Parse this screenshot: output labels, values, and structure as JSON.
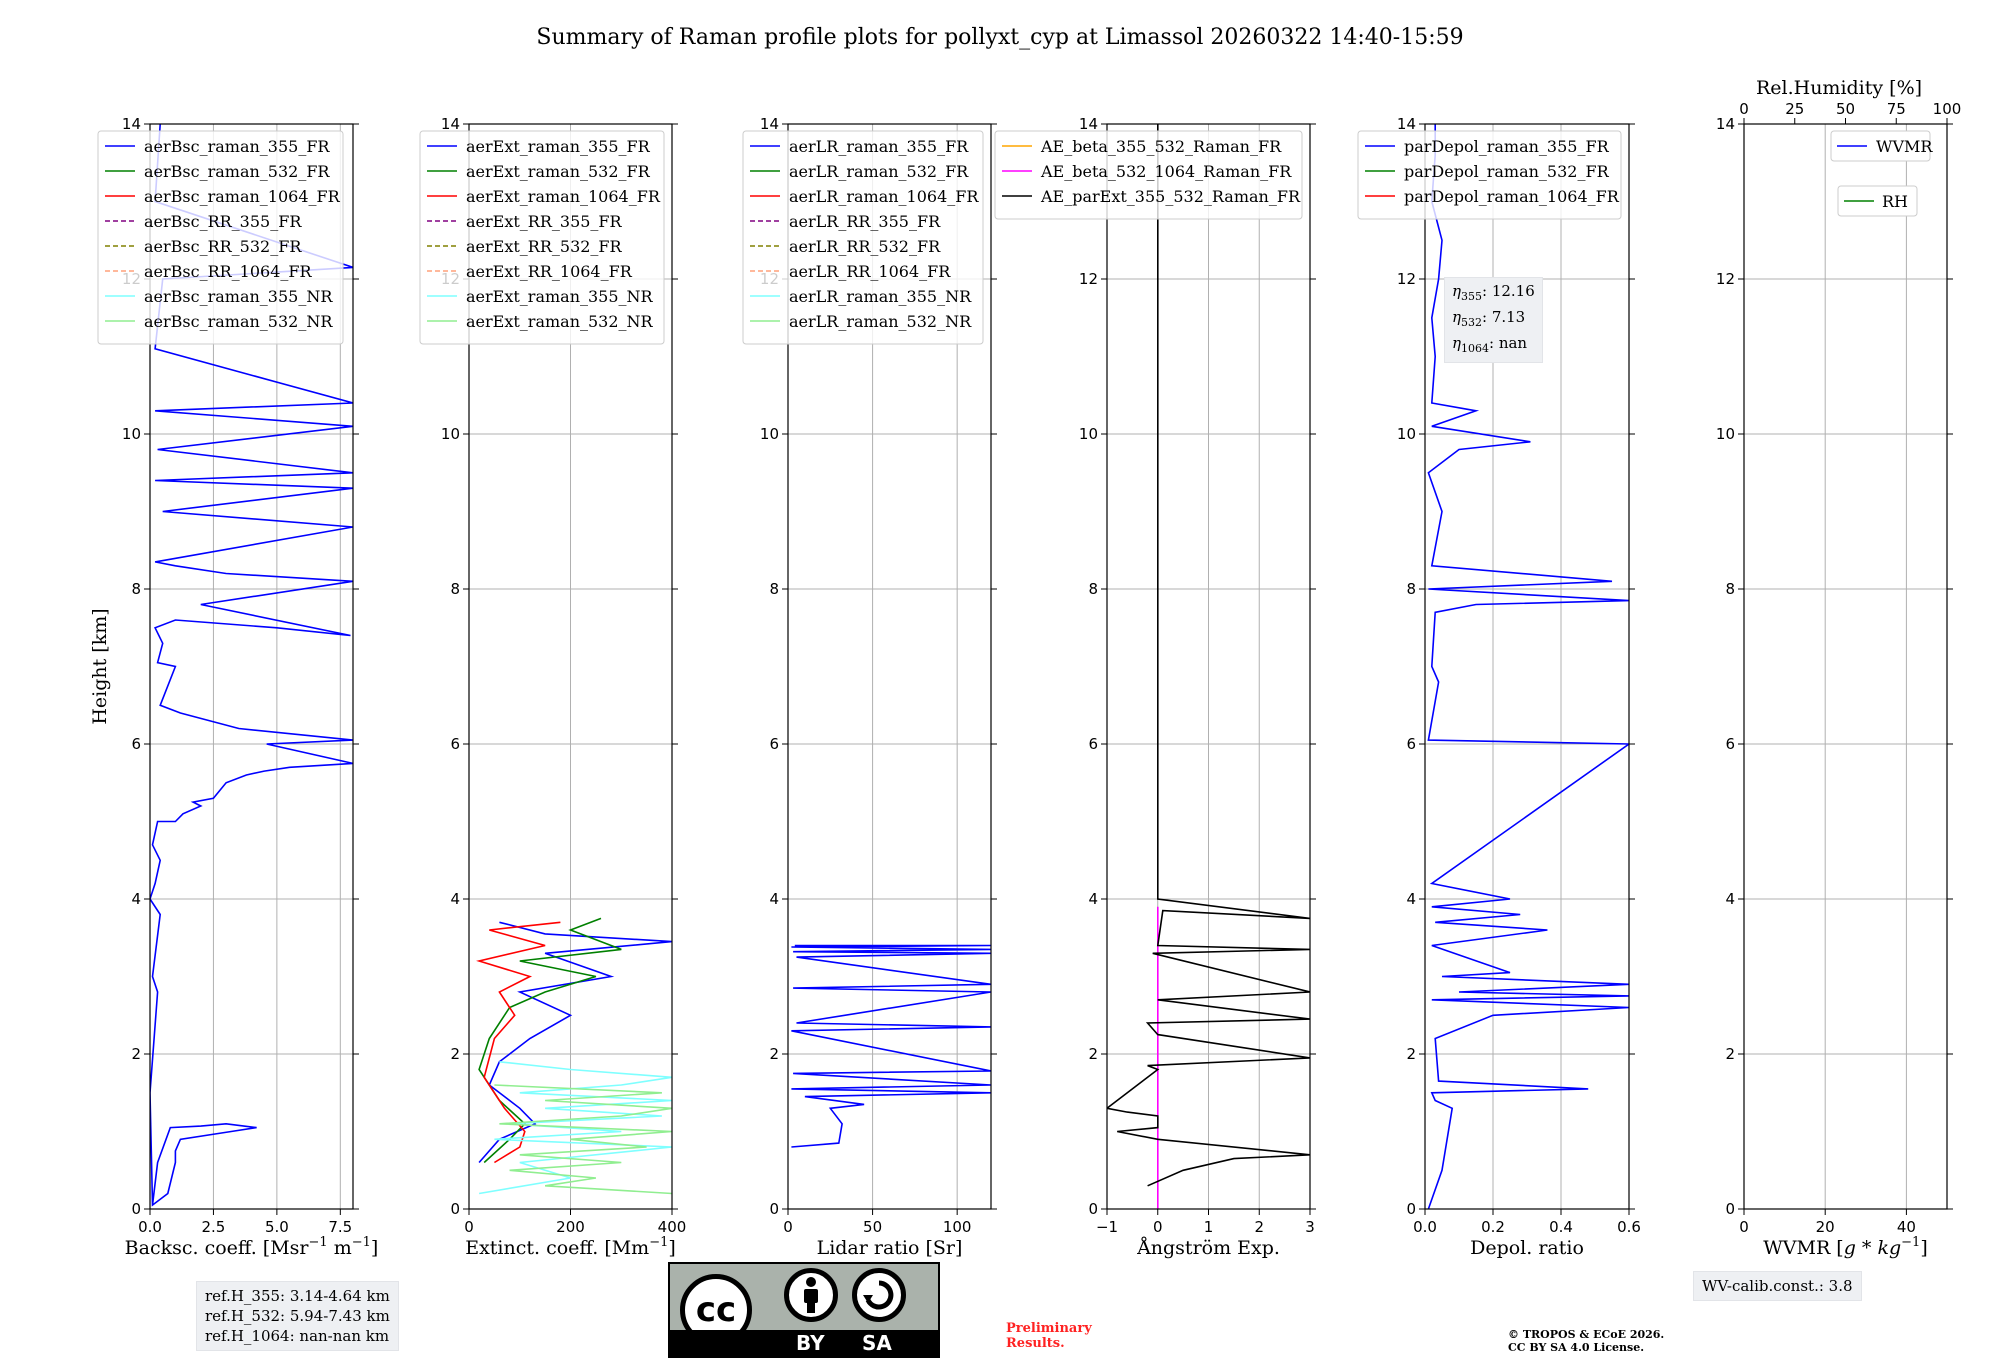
{
  "figure_title": "Summary of Raman profile plots for pollyxt_cyp at Limassol 20260322 14:40-15:59",
  "colors": {
    "blue": "#0000ff",
    "green": "#008000",
    "red": "#ff0000",
    "purple": "#800080",
    "olive": "#808000",
    "salmon": "#ffa07a",
    "cyan": "#7fffff",
    "lightgreen": "#90ee90",
    "orange": "#ffa500",
    "magenta": "#ff00ff",
    "black": "#000000",
    "grid": "#b0b0b0"
  },
  "chart_data": [
    {
      "type": "line",
      "name": "backscatter",
      "xlabel": "Backsc. coeff. [Msr$^{-1}$ m$^{-1}$]",
      "xlabel_main": "Backsc. coeff. [Msr",
      "xlabel_sup1": "−1",
      "xlabel_mid": " m",
      "xlabel_sup2": "−1",
      "xlabel_end": "]",
      "ylabel": "Height [km]",
      "xlim": [
        0,
        8
      ],
      "ylim": [
        0,
        14
      ],
      "xticks": [
        0,
        2.5,
        5,
        7.5
      ],
      "xtick_labels": [
        "0.0",
        "2.5",
        "5.0",
        "7.5"
      ],
      "yticks": [
        0,
        2,
        4,
        6,
        8,
        10,
        12,
        14
      ],
      "ytick_labels": [
        "0",
        "2",
        "4",
        "6",
        "8",
        "10",
        "12",
        "14"
      ],
      "legend": [
        "aerBsc_raman_355_FR",
        "aerBsc_raman_532_FR",
        "aerBsc_raman_1064_FR",
        "aerBsc_RR_355_FR",
        "aerBsc_RR_532_FR",
        "aerBsc_RR_1064_FR",
        "aerBsc_raman_355_NR",
        "aerBsc_raman_532_NR"
      ],
      "series": [
        {
          "name": "aerBsc_raman_355_FR",
          "color": "#0000ff",
          "x": [
            0.1,
            0.3,
            0.8,
            2.0,
            3.0,
            4.2,
            3.2,
            1.2,
            1.0,
            1.0,
            0.7,
            0.1,
            0.0,
            0.3,
            0.1,
            0.4,
            0.0,
            0.2,
            0.4,
            0.1,
            0.3,
            1.0,
            1.3,
            2.0,
            1.7,
            2.5,
            3.0,
            3.8,
            4.5,
            5.5,
            8.0,
            4.6,
            8.0,
            3.5,
            1.2,
            0.4,
            1.0,
            0.3,
            0.5,
            0.2,
            1.0,
            5.0,
            7.9,
            2.0,
            8.0,
            3.0,
            1.0,
            0.2,
            8.0,
            0.5,
            8.0,
            0.2,
            8.0,
            0.3,
            8.0,
            0.2,
            8.0,
            0.2,
            0.5,
            8.0,
            0.2,
            0.4
          ],
          "y": [
            0.05,
            0.6,
            1.05,
            1.07,
            1.1,
            1.05,
            1.0,
            0.9,
            0.75,
            0.6,
            0.2,
            0.05,
            1.5,
            2.8,
            3.0,
            3.8,
            4.0,
            4.2,
            4.5,
            4.7,
            5.0,
            5.0,
            5.1,
            5.2,
            5.25,
            5.3,
            5.5,
            5.6,
            5.65,
            5.7,
            5.75,
            6.0,
            6.05,
            6.2,
            6.4,
            6.5,
            7.0,
            7.05,
            7.3,
            7.5,
            7.6,
            7.5,
            7.4,
            7.8,
            8.1,
            8.2,
            8.3,
            8.35,
            8.8,
            9.0,
            9.3,
            9.4,
            9.5,
            9.8,
            10.1,
            10.3,
            10.4,
            11.1,
            12.0,
            12.15,
            13.0,
            14.0
          ]
        }
      ]
    },
    {
      "type": "line",
      "name": "extinction",
      "xlabel": "Extinct. coeff. [Mm$^{-1}$]",
      "xlabel_main": "Extinct. coeff. [Mm",
      "xlabel_sup": "−1",
      "xlabel_end": "]",
      "xlim": [
        0,
        400
      ],
      "ylim": [
        0,
        14
      ],
      "xticks": [
        0,
        200,
        400
      ],
      "xtick_labels": [
        "0",
        "200",
        "400"
      ],
      "yticks": [
        0,
        2,
        4,
        6,
        8,
        10,
        12,
        14
      ],
      "ytick_labels": [
        "0",
        "2",
        "4",
        "6",
        "8",
        "10",
        "12",
        "14"
      ],
      "legend": [
        "aerExt_raman_355_FR",
        "aerExt_raman_532_FR",
        "aerExt_raman_1064_FR",
        "aerExt_RR_355_FR",
        "aerExt_RR_532_FR",
        "aerExt_RR_1064_FR",
        "aerExt_raman_355_NR",
        "aerExt_raman_532_NR"
      ],
      "series": [
        {
          "name": "aerExt_raman_355_FR",
          "color": "#0000ff",
          "x": [
            20,
            60,
            130,
            100,
            40,
            60,
            120,
            200,
            100,
            280,
            150,
            400,
            150,
            60
          ],
          "y": [
            0.6,
            0.9,
            1.1,
            1.3,
            1.6,
            1.9,
            2.2,
            2.5,
            2.8,
            3.0,
            3.3,
            3.45,
            3.55,
            3.7
          ]
        },
        {
          "name": "aerExt_raman_532_FR",
          "color": "#008000",
          "x": [
            30,
            80,
            110,
            60,
            20,
            40,
            80,
            150,
            250,
            100,
            300,
            200,
            260
          ],
          "y": [
            0.6,
            0.9,
            1.1,
            1.4,
            1.8,
            2.2,
            2.6,
            2.8,
            3.0,
            3.2,
            3.35,
            3.6,
            3.75
          ]
        },
        {
          "name": "aerExt_raman_1064_FR",
          "color": "#ff0000",
          "x": [
            50,
            100,
            110,
            70,
            30,
            50,
            90,
            60,
            120,
            20,
            150,
            40,
            180
          ],
          "y": [
            0.6,
            0.8,
            1.0,
            1.3,
            1.7,
            2.2,
            2.5,
            2.8,
            3.0,
            3.2,
            3.4,
            3.6,
            3.7
          ]
        },
        {
          "name": "aerExt_raman_355_NR",
          "color": "#7fffff",
          "x": [
            20,
            200,
            100,
            400,
            50,
            300,
            80,
            380,
            150,
            400,
            100,
            300,
            400,
            200,
            60
          ],
          "y": [
            0.2,
            0.4,
            0.6,
            0.8,
            0.9,
            1.0,
            1.1,
            1.2,
            1.3,
            1.4,
            1.5,
            1.6,
            1.7,
            1.8,
            1.9
          ]
        },
        {
          "name": "aerExt_raman_532_NR",
          "color": "#90ee90",
          "x": [
            400,
            150,
            250,
            80,
            300,
            100,
            350,
            200,
            400,
            60,
            300,
            400,
            150,
            380,
            50
          ],
          "y": [
            0.2,
            0.3,
            0.4,
            0.5,
            0.6,
            0.7,
            0.8,
            0.9,
            1.0,
            1.1,
            1.2,
            1.3,
            1.4,
            1.5,
            1.6
          ]
        }
      ]
    },
    {
      "type": "line",
      "name": "lidar_ratio",
      "xlabel": "Lidar ratio [Sr]",
      "xlim": [
        0,
        120
      ],
      "ylim": [
        0,
        14
      ],
      "xticks": [
        0,
        50,
        100
      ],
      "xtick_labels": [
        "0",
        "50",
        "100"
      ],
      "yticks": [
        0,
        2,
        4,
        6,
        8,
        10,
        12,
        14
      ],
      "ytick_labels": [
        "0",
        "2",
        "4",
        "6",
        "8",
        "10",
        "12",
        "14"
      ],
      "legend": [
        "aerLR_raman_355_FR",
        "aerLR_raman_532_FR",
        "aerLR_raman_1064_FR",
        "aerLR_RR_355_FR",
        "aerLR_RR_532_FR",
        "aerLR_RR_1064_FR",
        "aerLR_raman_355_NR",
        "aerLR_raman_532_NR"
      ],
      "series": [
        {
          "name": "aerLR_raman_355_FR",
          "color": "#0000ff",
          "x": [
            2,
            30,
            32,
            25,
            45,
            10,
            120,
            2,
            120,
            3,
            120,
            2,
            120,
            5,
            120,
            3,
            120,
            5,
            120,
            3,
            120,
            2,
            120,
            4
          ],
          "y": [
            0.8,
            0.85,
            1.1,
            1.3,
            1.35,
            1.45,
            1.5,
            1.55,
            1.6,
            1.75,
            1.78,
            2.3,
            2.35,
            2.4,
            2.8,
            2.85,
            2.9,
            3.25,
            3.3,
            3.32,
            3.35,
            3.38,
            3.4,
            3.4
          ]
        }
      ]
    },
    {
      "type": "line",
      "name": "angstrom",
      "xlabel": "Ångström Exp.",
      "xlim": [
        -1,
        3
      ],
      "ylim": [
        0,
        14
      ],
      "xticks": [
        -1,
        0,
        1,
        2,
        3
      ],
      "xtick_labels": [
        "−1",
        "0",
        "1",
        "2",
        "3"
      ],
      "yticks": [
        0,
        2,
        4,
        6,
        8,
        10,
        12,
        14
      ],
      "ytick_labels": [
        "0",
        "2",
        "4",
        "6",
        "8",
        "10",
        "12",
        "14"
      ],
      "legend": [
        "AE_beta_355_532_Raman_FR",
        "AE_beta_532_1064_Raman_FR",
        "AE_parExt_355_532_Raman_FR"
      ],
      "series": [
        {
          "name": "AE_beta_532_1064_Raman_FR",
          "color": "#ff00ff",
          "x": [
            0,
            0
          ],
          "y": [
            0,
            3.9
          ]
        },
        {
          "name": "AE_parExt_355_532_Raman_FR",
          "color": "#000000",
          "x": [
            -0.2,
            0.5,
            1.5,
            3,
            0,
            -0.8,
            0,
            0,
            -0.6,
            -1,
            0,
            -0.2,
            3,
            0,
            -0.2,
            3,
            0,
            3,
            -0.1,
            3,
            0,
            0.1,
            3,
            0,
            0,
            0
          ],
          "y": [
            0.3,
            0.5,
            0.65,
            0.7,
            0.9,
            1.0,
            1.05,
            1.2,
            1.25,
            1.3,
            1.8,
            1.85,
            1.95,
            2.25,
            2.4,
            2.45,
            2.7,
            2.8,
            3.3,
            3.35,
            3.4,
            3.85,
            3.75,
            4.0,
            8.0,
            14.0
          ]
        }
      ]
    },
    {
      "type": "line",
      "name": "depolarization",
      "xlabel": "Depol. ratio",
      "xlim": [
        0,
        0.6
      ],
      "ylim": [
        0,
        14
      ],
      "xticks": [
        0,
        0.2,
        0.4,
        0.6
      ],
      "xtick_labels": [
        "0.0",
        "0.2",
        "0.4",
        "0.6"
      ],
      "yticks": [
        0,
        2,
        4,
        6,
        8,
        10,
        12,
        14
      ],
      "ytick_labels": [
        "0",
        "2",
        "4",
        "6",
        "8",
        "10",
        "12",
        "14"
      ],
      "legend": [
        "parDepol_raman_355_FR",
        "parDepol_raman_532_FR",
        "parDepol_raman_1064_FR"
      ],
      "annotation": [
        "355",
        "12.16",
        "532",
        "7.13",
        "1064",
        "nan"
      ],
      "series": [
        {
          "name": "parDepol_raman_355_FR",
          "color": "#0000ff",
          "x": [
            0.01,
            0.05,
            0.08,
            0.03,
            0.02,
            0.48,
            0.04,
            0.03,
            0.2,
            0.6,
            0.02,
            0.6,
            0.1,
            0.6,
            0.05,
            0.25,
            0.02,
            0.36,
            0.03,
            0.28,
            0.02,
            0.25,
            0.02,
            0.6,
            0.01,
            0.04,
            0.02,
            0.03,
            0.15,
            0.6,
            0.01,
            0.55,
            0.02,
            0.05,
            0.01,
            0.1,
            0.31,
            0.02,
            0.15,
            0.02,
            0.03,
            0.02,
            0.04,
            0.05,
            0.02,
            0.03,
            0.03
          ],
          "y": [
            0.0,
            0.5,
            1.3,
            1.4,
            1.5,
            1.55,
            1.65,
            2.2,
            2.5,
            2.6,
            2.7,
            2.75,
            2.8,
            2.9,
            3.0,
            3.05,
            3.4,
            3.6,
            3.7,
            3.8,
            3.9,
            4.0,
            4.2,
            6.0,
            6.05,
            6.8,
            7.0,
            7.7,
            7.8,
            7.85,
            8.0,
            8.1,
            8.3,
            9.0,
            9.5,
            9.8,
            9.9,
            10.1,
            10.3,
            10.4,
            11.0,
            11.5,
            12.0,
            12.5,
            13.0,
            13.6,
            14.0
          ]
        }
      ]
    },
    {
      "type": "line",
      "name": "water_vapor",
      "xlabel": "WVMR [g*kg^-1]",
      "xlabel_text": "WVMR [",
      "xlabel_math": "g * kg",
      "xlabel_sup": "−1",
      "xlabel_end": "]",
      "xlim": [
        0,
        50
      ],
      "ylim": [
        0,
        14
      ],
      "xticks": [
        0,
        20,
        40
      ],
      "xtick_labels": [
        "0",
        "20",
        "40"
      ],
      "yticks": [
        0,
        2,
        4,
        6,
        8,
        10,
        12,
        14
      ],
      "ytick_labels": [
        "0",
        "2",
        "4",
        "6",
        "8",
        "10",
        "12",
        "14"
      ],
      "top_axis_label": "Rel.Humidity [%]",
      "top_xlim": [
        0,
        100
      ],
      "top_xticks": [
        0,
        25,
        50,
        75,
        100
      ],
      "top_xtick_labels": [
        "0",
        "25",
        "50",
        "75",
        "100"
      ],
      "legend": [
        "WVMR",
        "RH"
      ],
      "series": []
    }
  ],
  "boxes": {
    "ref_heights": [
      "ref.H_355: 3.14-4.64 km",
      "ref.H_532: 5.94-7.43 km",
      "ref.H_1064: nan-nan km"
    ],
    "wv_calib": "WV-calib.const.: 3.8"
  },
  "license": {
    "badge_cc": "cc",
    "badge_by": "BY",
    "badge_sa": "SA",
    "preliminary": [
      "Preliminary",
      "Results."
    ],
    "copyright": [
      "© TROPOS & ECoE 2026.",
      "CC BY SA 4.0 License."
    ]
  }
}
